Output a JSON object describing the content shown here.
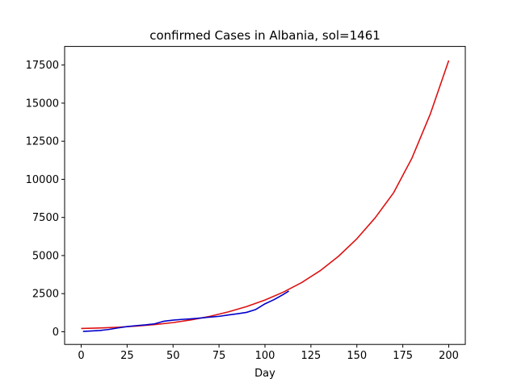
{
  "chart_data": {
    "type": "line",
    "title": "confirmed Cases in Albania, sol=1461",
    "xlabel": "Day",
    "ylabel": "",
    "xlim": [
      -9,
      209
    ],
    "ylim": [
      -833,
      18720
    ],
    "xticks": [
      0,
      25,
      50,
      75,
      100,
      125,
      150,
      175,
      200
    ],
    "yticks": [
      0,
      2500,
      5000,
      7500,
      10000,
      12500,
      15000,
      17500
    ],
    "grid": false,
    "legend": "none",
    "series": [
      {
        "color": "#dd1111",
        "x": [
          0,
          10,
          20,
          30,
          40,
          50,
          60,
          70,
          80,
          90,
          100,
          110,
          120,
          130,
          140,
          150,
          160,
          170,
          180,
          190,
          200
        ],
        "y": [
          210,
          245,
          295,
          370,
          470,
          600,
          780,
          1010,
          1300,
          1650,
          2080,
          2600,
          3230,
          4000,
          4950,
          6100,
          7480,
          9120,
          11400,
          14300,
          17800
        ]
      },
      {
        "color": "#0000cc",
        "x": [
          1,
          5,
          10,
          15,
          20,
          25,
          30,
          35,
          40,
          45,
          50,
          55,
          60,
          65,
          70,
          75,
          80,
          85,
          90,
          95,
          100,
          105,
          110,
          113
        ],
        "y": [
          20,
          45,
          80,
          150,
          250,
          340,
          400,
          450,
          520,
          690,
          760,
          810,
          850,
          900,
          960,
          1010,
          1100,
          1180,
          1270,
          1460,
          1830,
          2110,
          2450,
          2670
        ]
      }
    ]
  }
}
